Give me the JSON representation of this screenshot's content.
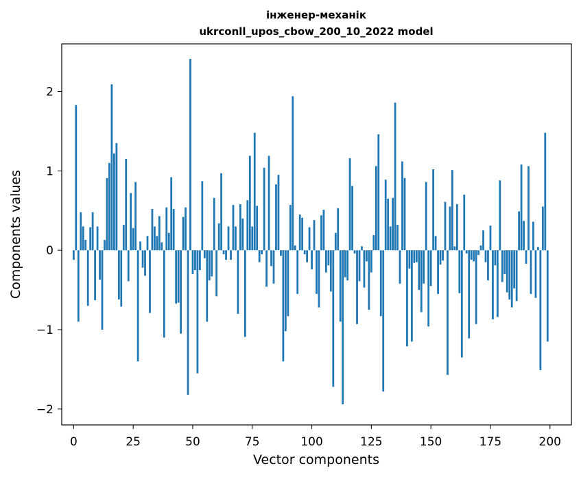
{
  "chart_data": {
    "type": "bar",
    "title": "інженер-механік",
    "subtitle": "ukrconll_upos_cbow_200_10_2022 model",
    "xlabel": "Vector components",
    "ylabel": "Components values",
    "xlim": [
      -5,
      209
    ],
    "ylim": [
      -2.2,
      2.6
    ],
    "xticks": [
      0,
      25,
      50,
      75,
      100,
      125,
      150,
      175,
      200
    ],
    "yticks": [
      -2,
      -1,
      0,
      1,
      2
    ],
    "ytick_labels": [
      "−2",
      "−1",
      "0",
      "1",
      "2"
    ],
    "grid": false,
    "bar_color": "#1f77b4",
    "x": [
      0,
      1,
      2,
      3,
      4,
      5,
      6,
      7,
      8,
      9,
      10,
      11,
      12,
      13,
      14,
      15,
      16,
      17,
      18,
      19,
      20,
      21,
      22,
      23,
      24,
      25,
      26,
      27,
      28,
      29,
      30,
      31,
      32,
      33,
      34,
      35,
      36,
      37,
      38,
      39,
      40,
      41,
      42,
      43,
      44,
      45,
      46,
      47,
      48,
      49,
      50,
      51,
      52,
      53,
      54,
      55,
      56,
      57,
      58,
      59,
      60,
      61,
      62,
      63,
      64,
      65,
      66,
      67,
      68,
      69,
      70,
      71,
      72,
      73,
      74,
      75,
      76,
      77,
      78,
      79,
      80,
      81,
      82,
      83,
      84,
      85,
      86,
      87,
      88,
      89,
      90,
      91,
      92,
      93,
      94,
      95,
      96,
      97,
      98,
      99,
      100,
      101,
      102,
      103,
      104,
      105,
      106,
      107,
      108,
      109,
      110,
      111,
      112,
      113,
      114,
      115,
      116,
      117,
      118,
      119,
      120,
      121,
      122,
      123,
      124,
      125,
      126,
      127,
      128,
      129,
      130,
      131,
      132,
      133,
      134,
      135,
      136,
      137,
      138,
      139,
      140,
      141,
      142,
      143,
      144,
      145,
      146,
      147,
      148,
      149,
      150,
      151,
      152,
      153,
      154,
      155,
      156,
      157,
      158,
      159,
      160,
      161,
      162,
      163,
      164,
      165,
      166,
      167,
      168,
      169,
      170,
      171,
      172,
      173,
      174,
      175,
      176,
      177,
      178,
      179,
      180,
      181,
      182,
      183,
      184,
      185,
      186,
      187,
      188,
      189,
      190,
      191,
      192,
      193,
      194,
      195,
      196,
      197,
      198,
      199
    ],
    "values": [
      -0.12,
      1.83,
      -0.9,
      0.48,
      0.3,
      0.13,
      -0.7,
      0.29,
      0.48,
      -0.63,
      0.3,
      -0.37,
      -1.0,
      0.13,
      0.91,
      1.1,
      2.09,
      1.22,
      1.35,
      -0.62,
      -0.71,
      0.32,
      1.15,
      -0.39,
      0.72,
      0.28,
      0.86,
      -1.4,
      0.11,
      -0.22,
      -0.32,
      0.18,
      -0.79,
      0.52,
      0.3,
      0.18,
      0.43,
      0.1,
      -1.1,
      0.54,
      0.22,
      0.92,
      0.52,
      -0.67,
      -0.66,
      -1.05,
      0.42,
      0.54,
      -1.82,
      2.41,
      -0.3,
      -0.25,
      -1.55,
      -0.25,
      0.87,
      -0.1,
      -0.9,
      -0.38,
      -0.33,
      0.66,
      -0.58,
      0.34,
      0.97,
      -0.05,
      -0.12,
      0.3,
      -0.12,
      0.57,
      0.3,
      -0.8,
      0.58,
      0.4,
      -1.09,
      0.63,
      1.19,
      0.3,
      1.48,
      0.56,
      -0.15,
      -0.05,
      1.04,
      -0.46,
      1.19,
      -0.2,
      -0.42,
      0.83,
      0.95,
      -0.07,
      -1.4,
      -1.02,
      -0.83,
      0.57,
      1.94,
      0.06,
      -0.55,
      0.45,
      0.41,
      -0.05,
      -0.15,
      0.29,
      -0.24,
      0.38,
      -0.55,
      -0.72,
      0.44,
      0.51,
      -0.28,
      -0.19,
      -0.52,
      -1.72,
      0.22,
      0.53,
      -0.9,
      -1.94,
      -0.34,
      -0.38,
      1.16,
      0.81,
      -0.04,
      -0.93,
      -0.39,
      0.05,
      -0.47,
      -0.14,
      -0.75,
      -0.28,
      0.19,
      1.06,
      1.46,
      -0.83,
      -1.78,
      0.89,
      0.65,
      0.3,
      0.66,
      1.86,
      0.32,
      -0.42,
      1.12,
      0.91,
      -1.21,
      -0.23,
      -1.15,
      -0.16,
      -0.15,
      -0.5,
      -0.78,
      -0.42,
      0.86,
      -0.96,
      -0.45,
      1.02,
      0.18,
      -0.55,
      -0.18,
      -0.13,
      0.61,
      -1.57,
      0.55,
      1.01,
      0.05,
      0.58,
      -0.54,
      -1.35,
      0.7,
      -0.04,
      -1.11,
      -0.12,
      -0.14,
      -0.93,
      -0.06,
      0.06,
      0.25,
      -0.15,
      -0.38,
      0.31,
      -0.87,
      -0.19,
      -0.84,
      0.88,
      -0.4,
      -0.3,
      -0.53,
      -0.62,
      -0.72,
      -0.48,
      -0.64,
      0.49,
      1.08,
      0.37,
      -0.17,
      1.06,
      -0.55,
      0.36,
      -0.6,
      0.04,
      -1.51,
      0.55,
      1.48,
      -1.15
    ]
  }
}
